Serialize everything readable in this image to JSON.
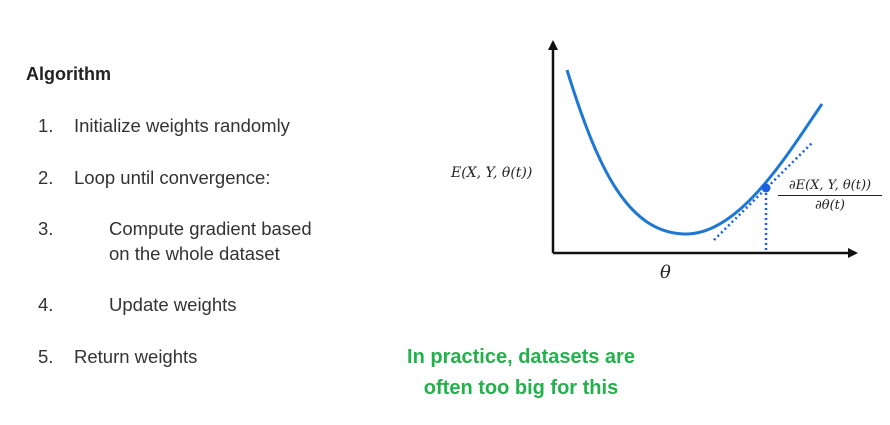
{
  "algorithm": {
    "title": "Algorithm",
    "steps": [
      {
        "num": "1.",
        "text": "Initialize weights randomly"
      },
      {
        "num": "2.",
        "text": "Loop until convergence:"
      },
      {
        "num": "3.",
        "line1": "Compute gradient based",
        "line2": "on the whole dataset"
      },
      {
        "num": "4.",
        "text": "Update weights"
      },
      {
        "num": "5.",
        "text": "Return weights"
      }
    ]
  },
  "note": {
    "line1": "In practice, datasets are",
    "line2": "often too big for this",
    "color": "#22b14c"
  },
  "plot": {
    "y_label": "E(X, Y, θ(t))",
    "x_label": "θ",
    "derivative_numerator": "∂E(X, Y, θ(t))",
    "derivative_denominator": "∂θ(t)",
    "curve_color": "#1f77d4",
    "point_color": "#1a5fe0"
  }
}
